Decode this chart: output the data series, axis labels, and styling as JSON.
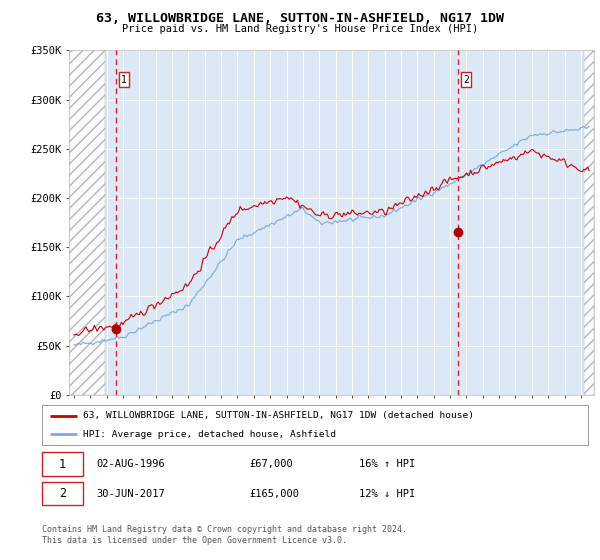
{
  "title": "63, WILLOWBRIDGE LANE, SUTTON-IN-ASHFIELD, NG17 1DW",
  "subtitle": "Price paid vs. HM Land Registry's House Price Index (HPI)",
  "ylim": [
    0,
    350000
  ],
  "xlim_start": 1993.7,
  "xlim_end": 2025.8,
  "yticks": [
    0,
    50000,
    100000,
    150000,
    200000,
    250000,
    300000,
    350000
  ],
  "ytick_labels": [
    "£0",
    "£50K",
    "£100K",
    "£150K",
    "£200K",
    "£250K",
    "£300K",
    "£350K"
  ],
  "xtick_years": [
    1994,
    1995,
    1996,
    1997,
    1998,
    1999,
    2000,
    2001,
    2002,
    2003,
    2004,
    2005,
    2006,
    2007,
    2008,
    2009,
    2010,
    2011,
    2012,
    2013,
    2014,
    2015,
    2016,
    2017,
    2018,
    2019,
    2020,
    2021,
    2022,
    2023,
    2024,
    2025
  ],
  "transaction1": {
    "year": 1996.58,
    "price": 67000,
    "label": "1",
    "date_str": "02-AUG-1996",
    "price_str": "£67,000",
    "hpi_str": "16% ↑ HPI"
  },
  "transaction2": {
    "year": 2017.5,
    "price": 165000,
    "label": "2",
    "date_str": "30-JUN-2017",
    "price_str": "£165,000",
    "hpi_str": "12% ↓ HPI"
  },
  "legend_entry1": "63, WILLOWBRIDGE LANE, SUTTON-IN-ASHFIELD, NG17 1DW (detached house)",
  "legend_entry2": "HPI: Average price, detached house, Ashfield",
  "footer": "Contains HM Land Registry data © Crown copyright and database right 2024.\nThis data is licensed under the Open Government Licence v3.0.",
  "line_color_red": "#cc0000",
  "line_color_blue": "#7aaadd",
  "bg_color": "#dce8f5",
  "hatch_end": 1995.9,
  "hatch_start_right": 2025.2
}
